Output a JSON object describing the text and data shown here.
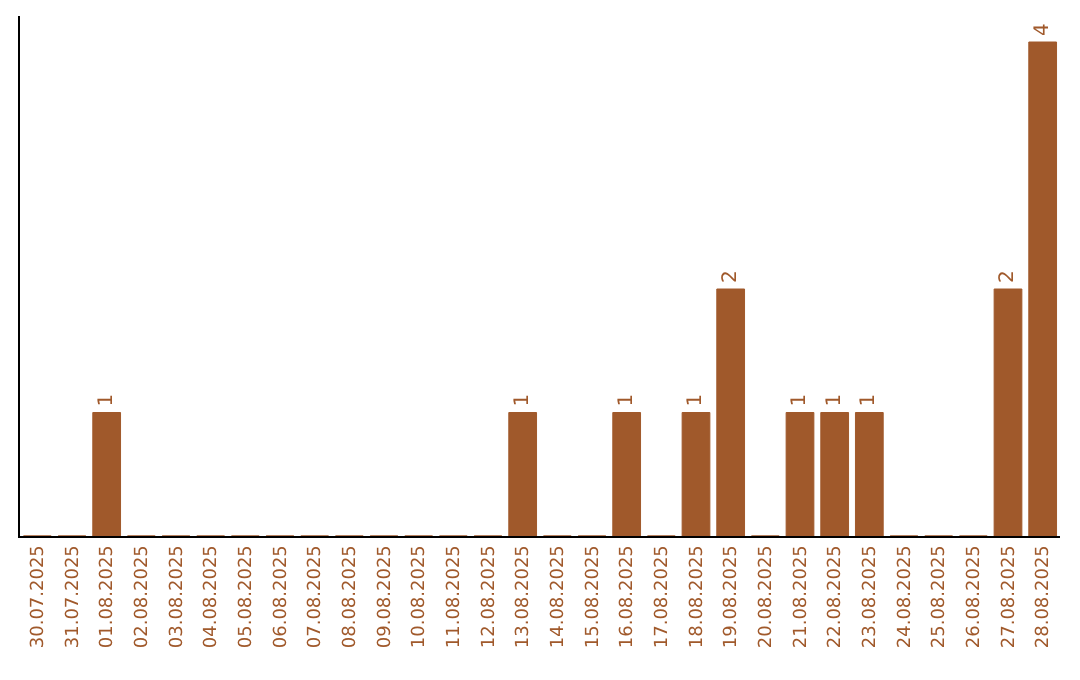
{
  "chart_data": {
    "type": "bar",
    "categories": [
      "30.07.2025",
      "31.07.2025",
      "01.08.2025",
      "02.08.2025",
      "03.08.2025",
      "04.08.2025",
      "05.08.2025",
      "06.08.2025",
      "07.08.2025",
      "08.08.2025",
      "09.08.2025",
      "10.08.2025",
      "11.08.2025",
      "12.08.2025",
      "13.08.2025",
      "14.08.2025",
      "15.08.2025",
      "16.08.2025",
      "17.08.2025",
      "18.08.2025",
      "19.08.2025",
      "20.08.2025",
      "21.08.2025",
      "22.08.2025",
      "23.08.2025",
      "24.08.2025",
      "25.08.2025",
      "26.08.2025",
      "27.08.2025",
      "28.08.2025"
    ],
    "values": [
      0,
      0,
      1,
      0,
      0,
      0,
      0,
      0,
      0,
      0,
      0,
      0,
      0,
      0,
      1,
      0,
      0,
      1,
      0,
      1,
      2,
      0,
      1,
      1,
      1,
      0,
      0,
      0,
      2,
      4
    ],
    "value_labels": [
      null,
      null,
      "1",
      null,
      null,
      null,
      null,
      null,
      null,
      null,
      null,
      null,
      null,
      null,
      "1",
      null,
      null,
      "1",
      null,
      "1",
      "2",
      null,
      "1",
      "1",
      "1",
      null,
      null,
      null,
      "2",
      "4"
    ],
    "color": "#a0592b"
  }
}
